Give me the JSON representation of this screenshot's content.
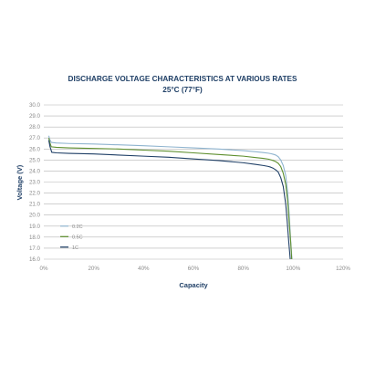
{
  "chart_data": {
    "type": "line",
    "title": "DISCHARGE VOLTAGE CHARACTERISTICS AT VARIOUS RATES",
    "subtitle": "25°C (77°F)",
    "xlabel": "Capacity",
    "ylabel": "Voltage (V)",
    "xlim": [
      0,
      120
    ],
    "ylim": [
      16,
      30
    ],
    "xticks": [
      "0%",
      "20%",
      "40%",
      "60%",
      "80%",
      "100%",
      "120%"
    ],
    "yticks": [
      "16.0",
      "17.0",
      "18.0",
      "19.0",
      "20.0",
      "21.0",
      "22.0",
      "23.0",
      "24.0",
      "25.0",
      "26.0",
      "27.0",
      "28.0",
      "29.0",
      "30.0"
    ],
    "grid": "horizontal",
    "legend_position": "bottom-left",
    "series": [
      {
        "name": "0.2C",
        "color": "#8fb4cf",
        "x": [
          2,
          2.3,
          3,
          5,
          10,
          20,
          30,
          40,
          50,
          60,
          70,
          80,
          85,
          88,
          90,
          91,
          92,
          93,
          94,
          95,
          96,
          97,
          97.8,
          98.4,
          99,
          99.5
        ],
        "y": [
          27.2,
          26.9,
          26.6,
          26.55,
          26.5,
          26.45,
          26.38,
          26.3,
          26.2,
          26.1,
          26.0,
          25.85,
          25.75,
          25.68,
          25.62,
          25.58,
          25.52,
          25.45,
          25.3,
          25.0,
          24.5,
          23.6,
          22.0,
          20.0,
          17.6,
          16.0
        ]
      },
      {
        "name": "0.5C",
        "color": "#5e8f2e",
        "x": [
          2,
          2.4,
          3,
          5,
          10,
          20,
          30,
          40,
          50,
          60,
          70,
          80,
          85,
          88,
          90,
          92,
          93,
          94,
          95,
          96,
          97,
          97.8,
          98.4,
          99,
          99.4
        ],
        "y": [
          27.0,
          26.6,
          26.2,
          26.15,
          26.1,
          26.05,
          26.0,
          25.9,
          25.8,
          25.65,
          25.5,
          25.35,
          25.22,
          25.15,
          25.08,
          24.95,
          24.85,
          24.7,
          24.4,
          23.8,
          22.8,
          21.2,
          19.3,
          17.5,
          16.0
        ]
      },
      {
        "name": "1C",
        "color": "#1f3f66",
        "x": [
          2,
          2.5,
          3.2,
          5,
          10,
          20,
          30,
          40,
          50,
          60,
          70,
          80,
          85,
          88,
          90,
          91,
          92,
          93,
          94,
          95,
          96,
          97,
          97.6,
          98.2,
          98.8
        ],
        "y": [
          26.8,
          26.2,
          25.7,
          25.65,
          25.6,
          25.55,
          25.45,
          25.35,
          25.25,
          25.1,
          24.95,
          24.75,
          24.6,
          24.5,
          24.42,
          24.35,
          24.25,
          24.1,
          23.9,
          23.4,
          22.6,
          21.0,
          19.4,
          17.6,
          16.0
        ]
      }
    ]
  }
}
